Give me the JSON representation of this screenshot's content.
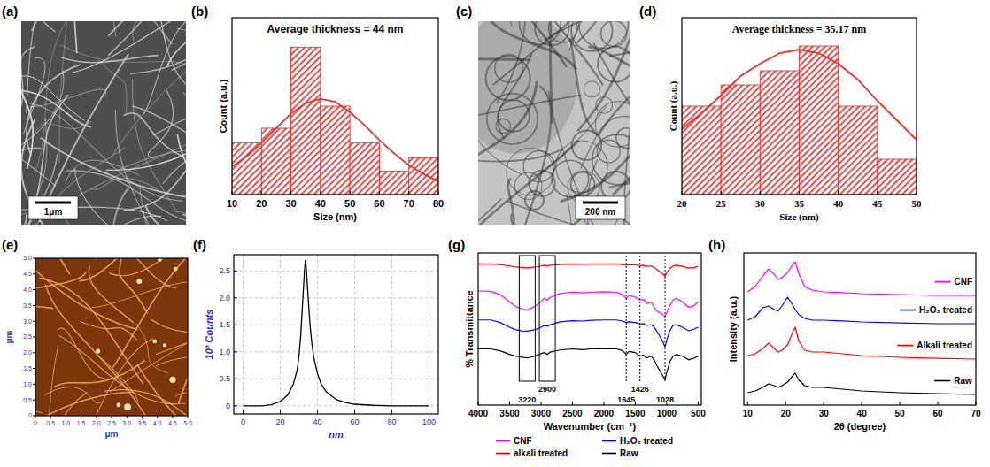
{
  "chart_data": [
    {
      "panel": "(a)",
      "type": "image",
      "annotations": [
        "1μm"
      ],
      "tick_labels": false
    },
    {
      "panel": "(b)",
      "type": "histogram",
      "title": "Average thickness = 44 nm",
      "xlabel": "Size (nm)",
      "ylabel": "Count (a.u.)",
      "bins": [
        10,
        20,
        30,
        40,
        50,
        60,
        70,
        80
      ],
      "counts": [
        0.35,
        0.45,
        1.0,
        0.6,
        0.35,
        0.16,
        0.25
      ],
      "color": "#e8302e",
      "fit": {
        "type": "line",
        "color": "#e8302e",
        "x": [
          10,
          15,
          20,
          25,
          30,
          35,
          40,
          45,
          50,
          55,
          60,
          65,
          70,
          75,
          80
        ],
        "values": [
          0.19,
          0.26,
          0.35,
          0.45,
          0.55,
          0.62,
          0.65,
          0.63,
          0.56,
          0.47,
          0.37,
          0.28,
          0.2,
          0.14,
          0.09
        ]
      },
      "xlim": [
        10,
        80
      ],
      "ylim": [
        0,
        1.2
      ],
      "xticks": [
        10,
        20,
        30,
        40,
        50,
        60,
        70,
        80
      ],
      "tick_labels": "x"
    },
    {
      "panel": "(c)",
      "type": "image",
      "annotations": [
        "200 nm"
      ],
      "tick_labels": false
    },
    {
      "panel": "(d)",
      "type": "histogram",
      "title": "Average thickness = 35.17 nm",
      "xlabel": "Size (nm)",
      "ylabel": "Count (a.u.)",
      "bins": [
        20,
        25,
        30,
        35,
        40,
        45,
        50
      ],
      "counts": [
        0.5,
        0.62,
        0.7,
        0.84,
        0.5,
        0.2
      ],
      "color": "#e8302e",
      "fit": {
        "type": "line",
        "color": "#e8302e",
        "x": [
          20,
          22.5,
          25,
          27.5,
          30,
          32.5,
          35,
          37.5,
          40,
          42.5,
          45,
          47.5,
          50
        ],
        "values": [
          0.37,
          0.46,
          0.56,
          0.67,
          0.74,
          0.8,
          0.82,
          0.8,
          0.74,
          0.65,
          0.53,
          0.42,
          0.31
        ]
      },
      "xlim": [
        20,
        50
      ],
      "ylim": [
        0,
        1
      ],
      "xticks": [
        20,
        25,
        30,
        35,
        40,
        45,
        50
      ],
      "tick_labels": "x"
    },
    {
      "panel": "(e)",
      "type": "image",
      "xlabel": "μm",
      "ylabel": "μm",
      "xlim": [
        0,
        5
      ],
      "ylim": [
        0,
        5
      ],
      "xticks": [
        0,
        0.5,
        {
          "value": 1,
          "label": "1.0"
        },
        1.5,
        {
          "value": 2,
          "label": "2.0"
        },
        2.5,
        {
          "value": 3,
          "label": "3.0"
        },
        3.5,
        {
          "value": 4,
          "label": "4.0"
        },
        4.5,
        {
          "value": 5,
          "label": "5.0"
        }
      ],
      "yticks": [
        0,
        0.5,
        {
          "value": 1,
          "label": "1.0"
        },
        1.5,
        {
          "value": 2,
          "label": "2.0"
        },
        2.5,
        {
          "value": 3,
          "label": "3.0"
        },
        3.5,
        {
          "value": 4,
          "label": "4.0"
        },
        4.5,
        {
          "value": 5,
          "label": "5.0"
        }
      ]
    },
    {
      "panel": "(f)",
      "type": "line",
      "xlabel": "nm",
      "ylabel": "10³ Counts",
      "x": [
        0,
        10,
        15,
        20,
        24,
        27,
        29,
        30,
        31,
        32,
        33,
        33.5,
        34,
        35,
        36,
        37,
        38,
        40,
        42,
        45,
        50,
        55,
        60,
        70,
        80,
        90,
        100
      ],
      "values": [
        0,
        0,
        0.02,
        0.08,
        0.2,
        0.4,
        0.65,
        0.9,
        1.3,
        1.9,
        2.5,
        2.7,
        2.55,
        2.0,
        1.5,
        1.15,
        0.9,
        0.6,
        0.4,
        0.25,
        0.12,
        0.06,
        0.03,
        0.01,
        0,
        0,
        0
      ],
      "color": "#000000",
      "xlim": [
        -5,
        105
      ],
      "ylim": [
        -0.15,
        2.8
      ],
      "xticks": [
        0,
        20,
        40,
        60,
        80,
        100
      ],
      "yticks": [
        0,
        0.5,
        {
          "value": 1,
          "label": "1.0"
        },
        1.5,
        {
          "value": 2,
          "label": "2.0"
        },
        2.5
      ],
      "grid": true
    },
    {
      "panel": "(g)",
      "type": "line",
      "xlabel": "Wavenumber (cm⁻¹)",
      "ylabel": "% Transmittance",
      "x": [
        4000,
        3800,
        3650,
        3500,
        3400,
        3300,
        3220,
        3100,
        3000,
        2950,
        2900,
        2850,
        2700,
        2500,
        2350,
        2200,
        2000,
        1800,
        1700,
        1645,
        1600,
        1500,
        1426,
        1370,
        1320,
        1250,
        1200,
        1160,
        1110,
        1060,
        1028,
        1000,
        950,
        900,
        850,
        750,
        650,
        560,
        500
      ],
      "series": [
        {
          "name": "CNF",
          "color": "#ff00ff",
          "values": [
            3.15,
            3.14,
            3.05,
            2.85,
            2.72,
            2.65,
            2.63,
            2.72,
            2.85,
            2.95,
            2.9,
            2.98,
            3.08,
            3.12,
            3.1,
            3.12,
            3.13,
            3.12,
            3.05,
            2.95,
            3.03,
            2.98,
            2.9,
            2.92,
            2.8,
            2.85,
            2.7,
            2.6,
            2.55,
            2.5,
            2.45,
            2.55,
            2.75,
            2.9,
            2.95,
            2.85,
            2.7,
            2.75,
            2.85
          ]
        },
        {
          "name": "H₂O₂ treated",
          "color": "#0000ff",
          "values": [
            2.35,
            2.35,
            2.28,
            2.15,
            2.08,
            2.05,
            2.04,
            2.08,
            2.15,
            2.2,
            2.18,
            2.22,
            2.3,
            2.33,
            2.32,
            2.34,
            2.35,
            2.35,
            2.32,
            2.28,
            2.3,
            2.28,
            2.24,
            2.25,
            2.2,
            2.22,
            2.15,
            2.05,
            1.9,
            1.75,
            1.6,
            1.8,
            2.05,
            2.2,
            2.22,
            2.15,
            2.05,
            2.1,
            2.15
          ]
        },
        {
          "name": "alkali treated",
          "color": "#ff0000",
          "values": [
            3.9,
            3.9,
            3.88,
            3.84,
            3.81,
            3.8,
            3.79,
            3.81,
            3.84,
            3.86,
            3.85,
            3.86,
            3.88,
            3.9,
            3.89,
            3.9,
            3.9,
            3.9,
            3.88,
            3.86,
            3.88,
            3.87,
            3.85,
            3.86,
            3.83,
            3.84,
            3.8,
            3.75,
            3.68,
            3.62,
            3.55,
            3.65,
            3.78,
            3.84,
            3.86,
            3.83,
            3.78,
            3.8,
            3.83
          ]
        },
        {
          "name": "Raw",
          "color": "#000000",
          "values": [
            1.55,
            1.55,
            1.5,
            1.4,
            1.35,
            1.32,
            1.3,
            1.35,
            1.42,
            1.45,
            1.4,
            1.47,
            1.52,
            1.55,
            1.53,
            1.55,
            1.56,
            1.55,
            1.5,
            1.4,
            1.48,
            1.45,
            1.35,
            1.38,
            1.3,
            1.35,
            1.25,
            1.1,
            0.95,
            0.8,
            0.7,
            0.9,
            1.2,
            1.35,
            1.4,
            1.35,
            1.25,
            1.3,
            1.35
          ]
        }
      ],
      "annotations": [
        {
          "x": 3220,
          "text": "3220",
          "line_style": "box"
        },
        {
          "x": 2900,
          "text": "2900",
          "line_style": "box"
        },
        {
          "x": 1645,
          "text": "1645",
          "line_style": "dotted"
        },
        {
          "x": 1426,
          "text": "1426",
          "line_style": "dotted"
        },
        {
          "x": 1028,
          "text": "1028",
          "line_style": "dotted"
        }
      ],
      "xlim": [
        4000,
        450
      ],
      "ylim": [
        0,
        4.2
      ],
      "xticks": [
        4000,
        3500,
        3000,
        2500,
        2000,
        1500,
        1000,
        500
      ],
      "tick_labels": "x",
      "legend": "bottom"
    },
    {
      "panel": "(h)",
      "type": "line",
      "xlabel": "2θ (degree)",
      "ylabel": "Intensity (a.u.)",
      "x": [
        10,
        12,
        14,
        15.5,
        17,
        18,
        19,
        20.5,
        22,
        22.5,
        23.5,
        25,
        27,
        30,
        35,
        40,
        50,
        60,
        70
      ],
      "series": [
        {
          "name": "CNF",
          "color": "#ff00ff",
          "values": [
            3.2,
            3.35,
            3.65,
            3.85,
            3.7,
            3.55,
            3.6,
            3.75,
            4.0,
            4.05,
            3.7,
            3.35,
            3.25,
            3.2,
            3.18,
            3.15,
            3.12,
            3.1,
            3.1
          ]
        },
        {
          "name": "H₂O₂ treated",
          "color": "#0000ff",
          "values": [
            2.4,
            2.5,
            2.75,
            2.8,
            2.7,
            2.65,
            2.8,
            3.05,
            2.8,
            2.7,
            2.55,
            2.45,
            2.4,
            2.4,
            2.38,
            2.35,
            2.32,
            2.3,
            2.3
          ]
        },
        {
          "name": "Alkali treated",
          "color": "#ff0000",
          "values": [
            1.4,
            1.45,
            1.6,
            1.75,
            1.6,
            1.5,
            1.55,
            1.7,
            2.1,
            2.2,
            1.8,
            1.55,
            1.5,
            1.5,
            1.45,
            1.4,
            1.35,
            1.32,
            1.3
          ]
        },
        {
          "name": "Raw",
          "color": "#000000",
          "values": [
            0.35,
            0.4,
            0.5,
            0.6,
            0.55,
            0.5,
            0.55,
            0.65,
            0.85,
            0.9,
            0.7,
            0.55,
            0.5,
            0.5,
            0.45,
            0.4,
            0.35,
            0.32,
            0.3
          ]
        }
      ],
      "xlim": [
        9,
        70
      ],
      "ylim": [
        0,
        4.3
      ],
      "xticks": [
        10,
        20,
        30,
        40,
        50,
        60,
        70
      ],
      "tick_labels": "x",
      "legend": "right"
    }
  ]
}
